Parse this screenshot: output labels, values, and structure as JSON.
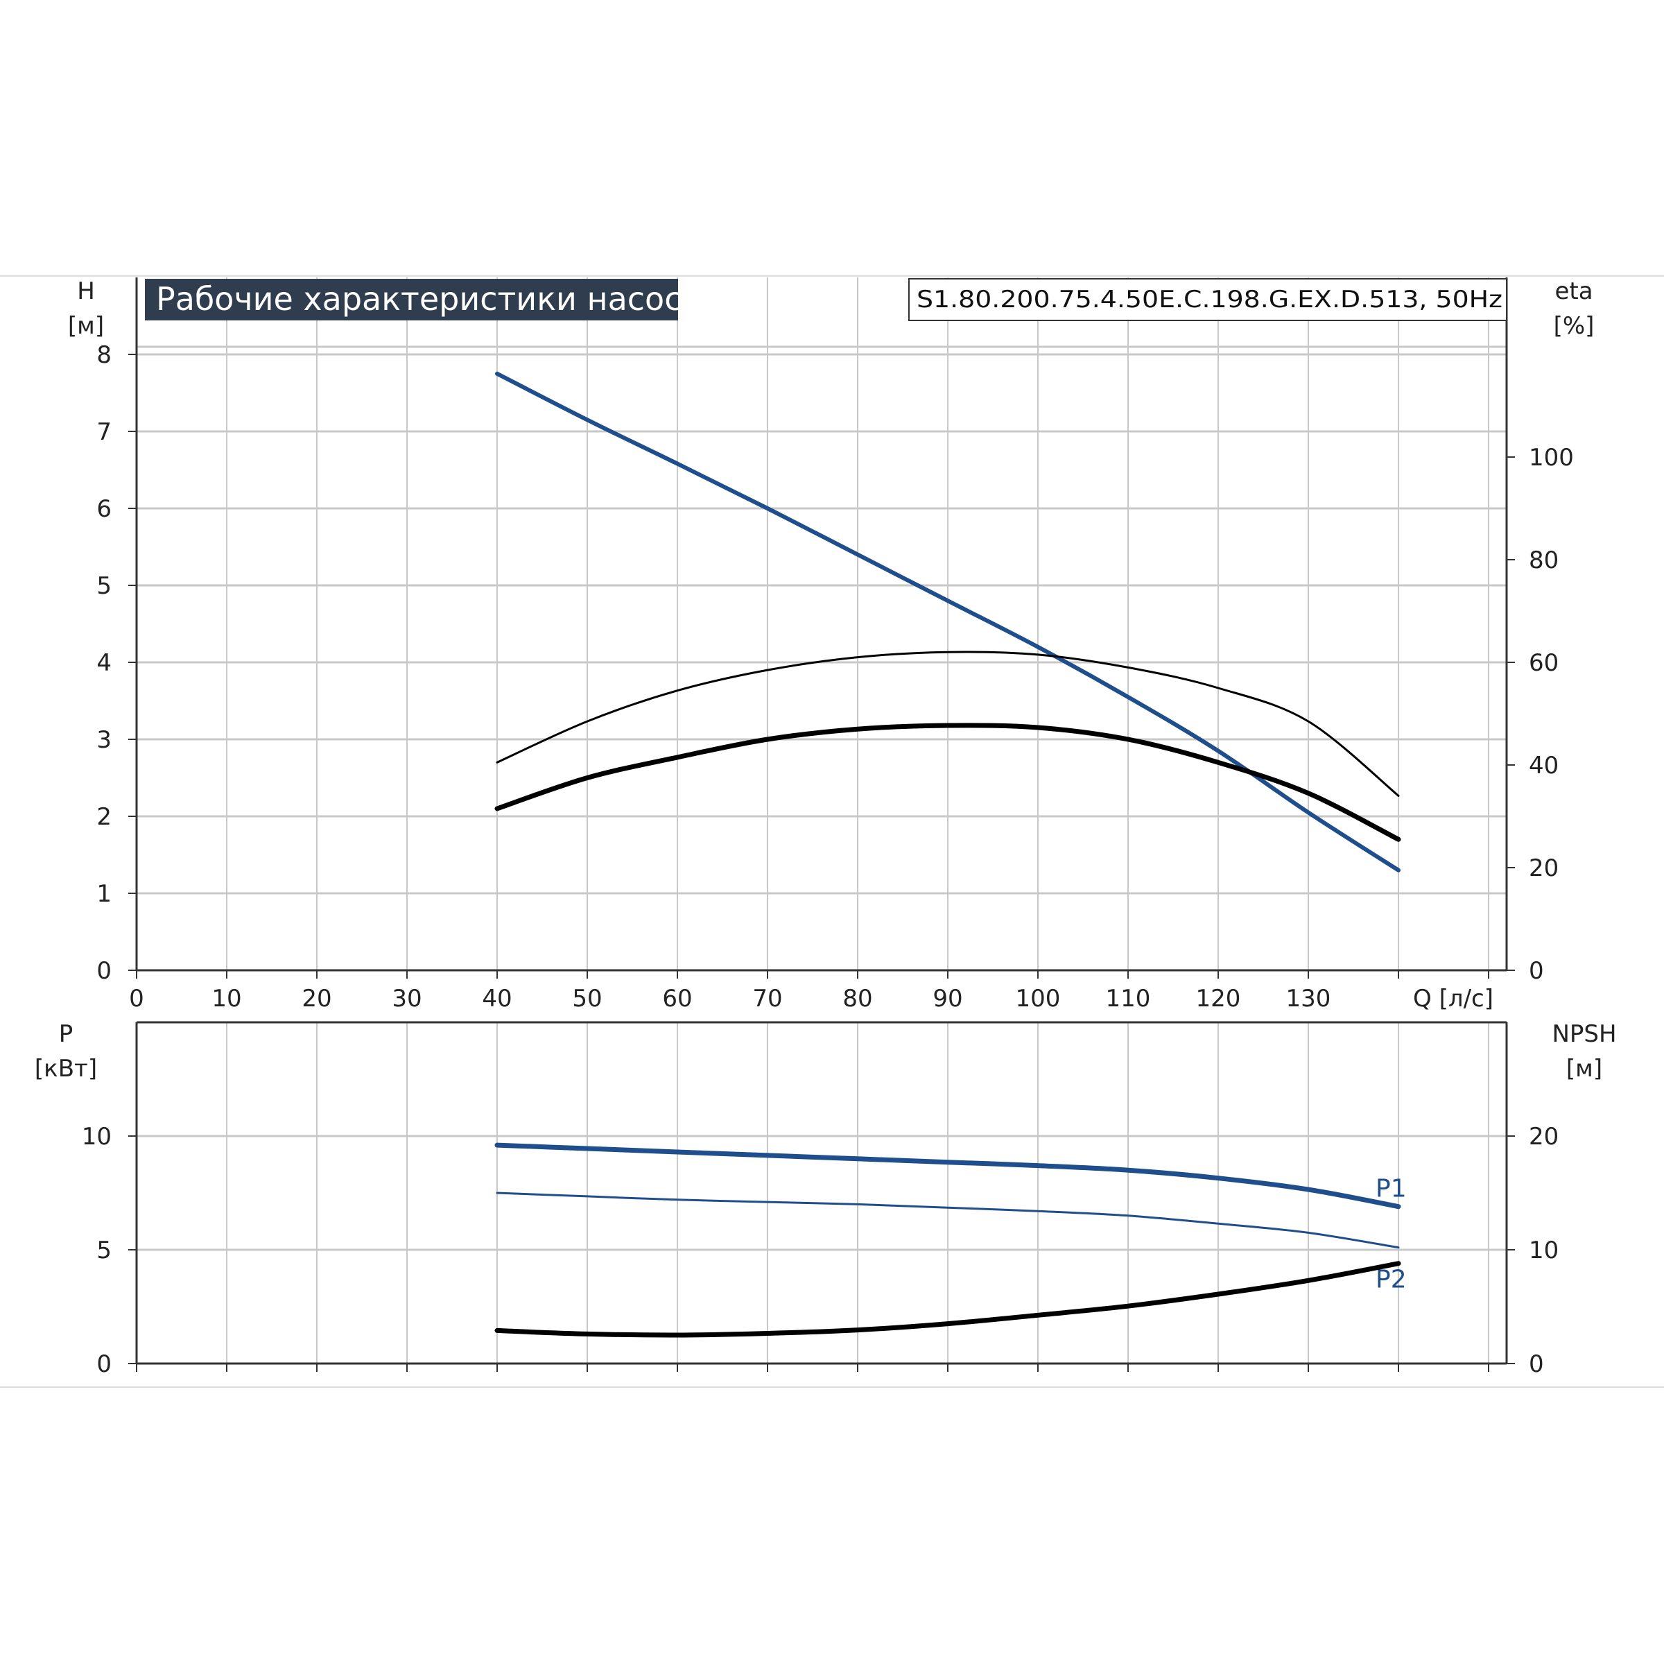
{
  "page": {
    "title": "Рабочие характеристики насоса",
    "model": "S1.80.200.75.4.50E.C.198.G.EX.D.513, 50Hz"
  },
  "colors": {
    "blue": "#1f4e8c",
    "black": "#000000",
    "grid": "#c8c8c8",
    "title_bg": "#2f3d4f",
    "axis": "#333333"
  },
  "chart_data": [
    {
      "type": "line",
      "title": "Рабочие характеристики насоса",
      "xlabel": "Q [л/с]",
      "ylabel": "H\n[м]",
      "y2label": "eta\n[%]",
      "xlim": [
        0,
        152
      ],
      "ylim": [
        0,
        9
      ],
      "y2lim": [
        0,
        135
      ],
      "x_ticks": [
        "0",
        "10",
        "20",
        "30",
        "40",
        "50",
        "60",
        "70",
        "80",
        "90",
        "100",
        "110",
        "120",
        "130"
      ],
      "y_ticks": [
        "0",
        "1",
        "2",
        "3",
        "4",
        "5",
        "6",
        "7",
        "8"
      ],
      "y2_ticks": [
        "0",
        "20",
        "40",
        "60",
        "80",
        "100"
      ],
      "grid": true,
      "series": [
        {
          "axis": "left",
          "color": "#1f4e8c",
          "x": [
            40,
            50,
            60,
            70,
            80,
            90,
            100,
            110,
            120,
            130,
            140
          ],
          "y": [
            7.75,
            7.15,
            6.58,
            6.0,
            5.4,
            4.8,
            4.2,
            3.55,
            2.85,
            2.05,
            1.3
          ]
        },
        {
          "axis": "right",
          "color": "#000000",
          "weight": "thin",
          "x": [
            40,
            50,
            60,
            70,
            80,
            90,
            100,
            110,
            120,
            130,
            140
          ],
          "y": [
            40.5,
            48.5,
            54.5,
            58.5,
            61.0,
            62.0,
            61.5,
            59.0,
            55.0,
            48.5,
            34.0
          ]
        },
        {
          "axis": "right",
          "color": "#000000",
          "weight": "thick",
          "x": [
            40,
            50,
            60,
            70,
            80,
            90,
            100,
            110,
            120,
            130,
            140
          ],
          "y": [
            31.5,
            37.5,
            41.5,
            45.0,
            47.0,
            47.7,
            47.3,
            45.0,
            40.5,
            34.5,
            25.5
          ]
        }
      ]
    },
    {
      "type": "line",
      "ylabel": "P\n[кВт]",
      "y2label": "NPSH\n[м]",
      "xlim": [
        0,
        152
      ],
      "ylim": [
        0,
        15
      ],
      "y2lim": [
        0,
        30
      ],
      "y_ticks": [
        "0",
        "5",
        "10"
      ],
      "y2_ticks": [
        "0",
        "10",
        "20"
      ],
      "grid": true,
      "series": [
        {
          "name": "P1",
          "axis": "left",
          "color": "#1f4e8c",
          "weight": "thick",
          "x": [
            40,
            50,
            60,
            70,
            80,
            90,
            100,
            110,
            120,
            130,
            140
          ],
          "y": [
            9.6,
            9.45,
            9.3,
            9.15,
            9.0,
            8.85,
            8.7,
            8.5,
            8.15,
            7.65,
            6.9
          ]
        },
        {
          "name": "P2",
          "axis": "left",
          "color": "#1f4e8c",
          "weight": "thin",
          "x": [
            40,
            50,
            60,
            70,
            80,
            90,
            100,
            110,
            120,
            130,
            140
          ],
          "y": [
            7.5,
            7.35,
            7.2,
            7.1,
            7.0,
            6.85,
            6.7,
            6.5,
            6.15,
            5.75,
            5.1
          ]
        },
        {
          "axis": "right",
          "color": "#000000",
          "weight": "thick",
          "x": [
            40,
            50,
            60,
            70,
            80,
            90,
            100,
            110,
            120,
            130,
            140
          ],
          "y": [
            2.9,
            2.6,
            2.5,
            2.65,
            2.95,
            3.5,
            4.25,
            5.05,
            6.1,
            7.3,
            8.8
          ]
        }
      ]
    }
  ]
}
